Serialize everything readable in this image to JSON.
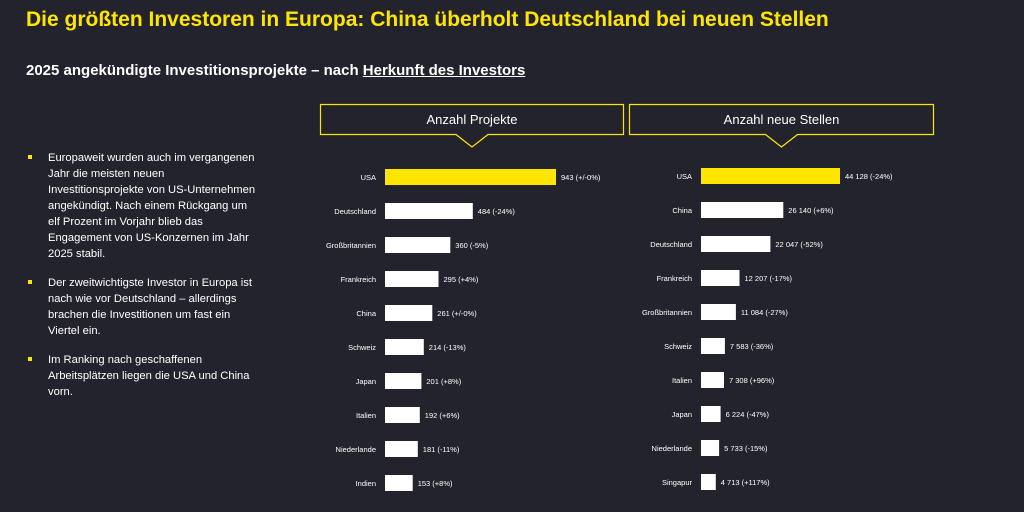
{
  "header": {
    "title": "Die größten Investoren in Europa: China überholt Deutschland bei neuen Stellen",
    "subtitle_prefix": "2025 angekündigte Investitionsprojekte – nach ",
    "subtitle_link": "Herkunft des Investors"
  },
  "bullets": [
    "Europaweit wurden auch im vergangenen Jahr die meisten neuen Investitionsprojekte von US-Unternehmen angekündigt. Nach einem Rückgang um elf Prozent im Vorjahr blieb das Engagement von US-Konzernen im Jahr 2025 stabil.",
    "Der zweitwichtigste Investor in Europa ist nach wie vor Deutschland – allerdings brachen die Investitionen um fast ein Viertel ein.",
    "Im Ranking nach geschaffenen Arbeitsplätzen liegen die USA und China vorn."
  ],
  "colors": {
    "background": "#23232d",
    "accent": "#ffe600",
    "bar": "#ffffff"
  },
  "chart_data": [
    {
      "type": "bar",
      "orientation": "horizontal",
      "title": "Anzahl Projekte",
      "categories": [
        "USA",
        "Deutschland",
        "Großbritannien",
        "Frankreich",
        "China",
        "Schweiz",
        "Japan",
        "Italien",
        "Niederlande",
        "Indien"
      ],
      "values": [
        943,
        484,
        360,
        295,
        261,
        214,
        201,
        192,
        181,
        153
      ],
      "labels": [
        "943 (+/-0%)",
        "484 (-24%)",
        "360 (-5%)",
        "295 (+4%)",
        "261 (+/-0%)",
        "214 (-13%)",
        "201 (+8%)",
        "192 (+6%)",
        "181 (-11%)",
        "153 (+8%)"
      ],
      "highlight": "USA"
    },
    {
      "type": "bar",
      "orientation": "horizontal",
      "title": "Anzahl neue Stellen",
      "categories": [
        "USA",
        "China",
        "Deutschland",
        "Frankreich",
        "Großbritannien",
        "Schweiz",
        "Italien",
        "Japan",
        "Niederlande",
        "Singapur"
      ],
      "values": [
        44128,
        26140,
        22047,
        12207,
        11084,
        7583,
        7308,
        6224,
        5733,
        4713
      ],
      "labels": [
        "44 128 (-24%)",
        "26 140 (+6%)",
        "22 047 (-52%)",
        "12 207 (-17%)",
        "11 084 (-27%)",
        "7 583 (-36%)",
        "7 308 (+96%)",
        "6 224 (-47%)",
        "5 733 (-15%)",
        "4 713 (+117%)"
      ],
      "highlight": "USA"
    }
  ]
}
